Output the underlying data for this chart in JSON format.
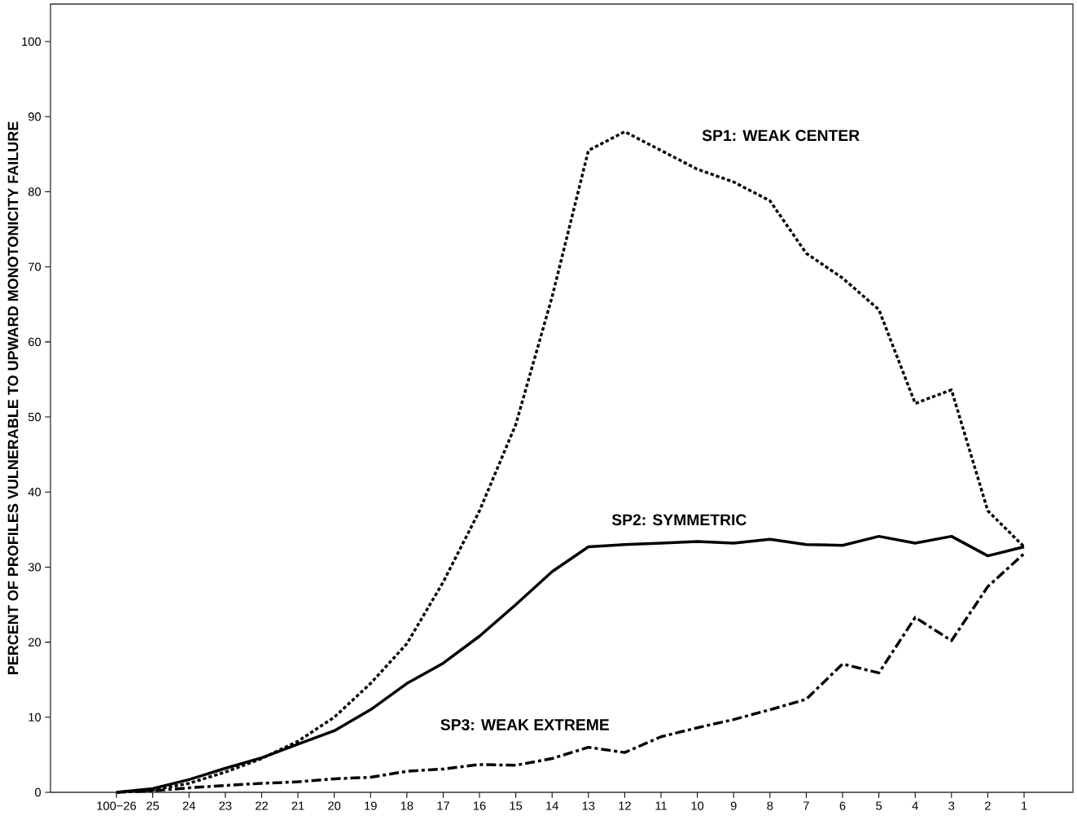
{
  "chart_data": {
    "type": "line",
    "ylabel": "PERCENT OF PROFILES VULNERABLE TO UPWARD MONOTONICITY FAILURE",
    "categories": [
      "100−26",
      "25",
      "24",
      "23",
      "22",
      "21",
      "20",
      "19",
      "18",
      "17",
      "16",
      "15",
      "14",
      "13",
      "12",
      "11",
      "10",
      "9",
      "8",
      "7",
      "6",
      "5",
      "4",
      "3",
      "2",
      "1"
    ],
    "ylim": [
      0,
      105
    ],
    "yticks": [
      0,
      10,
      20,
      30,
      40,
      50,
      60,
      70,
      80,
      90,
      100
    ],
    "grid": false,
    "legend": false,
    "marker": "none",
    "series": [
      {
        "name": "SP1: WEAK CENTER",
        "color": "#000000",
        "line_style": "dotted",
        "values": [
          0,
          0.3,
          1.2,
          2.7,
          4.5,
          6.8,
          10,
          14.5,
          19.8,
          28,
          37.5,
          49,
          66,
          85.5,
          88,
          85.5,
          83,
          81.3,
          78.8,
          71.8,
          68.5,
          64.3,
          51.8,
          53.6,
          37.5,
          32.7
        ]
      },
      {
        "name": "SP2: SYMMETRIC",
        "color": "#000000",
        "line_style": "solid",
        "values": [
          0,
          0.5,
          1.7,
          3.2,
          4.6,
          6.4,
          8.2,
          11,
          14.5,
          17.2,
          20.8,
          25,
          29.4,
          32.7,
          33,
          33.2,
          33.4,
          33.2,
          33.7,
          33,
          32.9,
          34.1,
          33.2,
          34.1,
          31.5,
          32.7
        ]
      },
      {
        "name": "SP3:  WEAK EXTREME",
        "color": "#000000",
        "line_style": "dashdot",
        "values": [
          0,
          0.2,
          0.6,
          0.9,
          1.2,
          1.4,
          1.8,
          2,
          2.8,
          3.1,
          3.7,
          3.6,
          4.5,
          6,
          5.3,
          7.4,
          8.6,
          9.7,
          11,
          12.4,
          17.1,
          15.9,
          23.3,
          20.2,
          27.4,
          31.8
        ]
      }
    ]
  }
}
